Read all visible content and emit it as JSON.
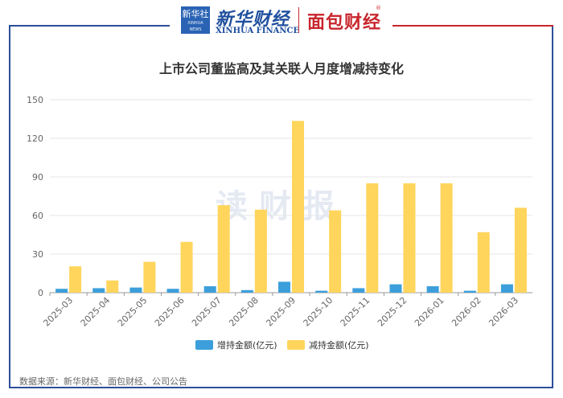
{
  "header": {
    "badge_cn": "新华社",
    "badge_en": "XINHUA NEWS",
    "brand_cn": "新华财经",
    "brand_en": "XINHUA FINANCE",
    "brand2_cn": "面包财经",
    "reg_mark": "®"
  },
  "watermark": "读财报",
  "source": "数据来源：新华财经、面包财经、公司公告",
  "colors": {
    "increase": "#3c9fdb",
    "decrease": "#ffd55c",
    "frame_blue": "#2d4f9a",
    "frame_red": "#c8262d"
  },
  "chart_data": {
    "type": "bar",
    "title": "上市公司董监高及其关联人月度增减持变化",
    "categories": [
      "2025-03",
      "2025-04",
      "2025-05",
      "2025-06",
      "2025-07",
      "2025-08",
      "2025-09",
      "2025-10",
      "2025-11",
      "2025-12",
      "2026-01",
      "2026-02",
      "2026-03"
    ],
    "series": [
      {
        "name": "增持金额(亿元)",
        "values": [
          3,
          3.5,
          4,
          3,
          5,
          2,
          8.5,
          1.5,
          3.5,
          6.5,
          5,
          1.5,
          6.5
        ]
      },
      {
        "name": "减持金额(亿元)",
        "values": [
          20.5,
          9.5,
          24,
          39.5,
          68,
          64.5,
          133.5,
          64,
          85,
          85,
          85,
          47,
          66
        ]
      }
    ],
    "ylim": [
      0,
      150
    ],
    "yticks": [
      0,
      30,
      60,
      90,
      120,
      150
    ],
    "grid": true,
    "legend": "bottom-center"
  }
}
